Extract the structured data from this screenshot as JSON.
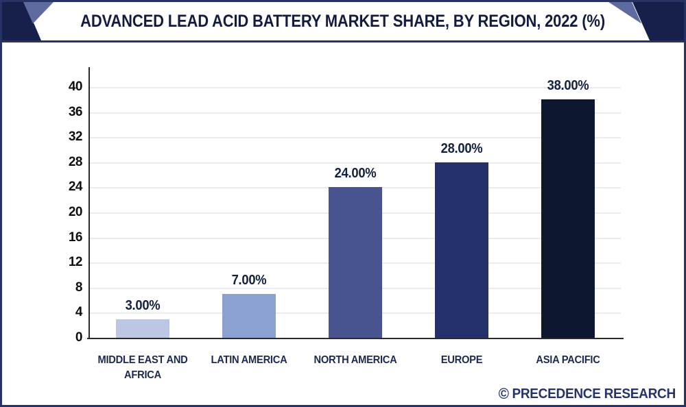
{
  "header": {
    "title": "ADVANCED LEAD ACID BATTERY MARKET SHARE, BY REGION, 2022 (%)"
  },
  "watermark": {
    "symbol": "©",
    "text": "PRECEDENCE RESEARCH"
  },
  "colors": {
    "border_navy": "#273364",
    "header_corner_dark": "#16204a",
    "header_corner_slate": "#5d6b9e",
    "axis": "#2a2a2a",
    "gridline": "#ebebeb",
    "tick_text": "#0e0e0e",
    "value_label_text": "#13203f",
    "category_text": "#1c2950",
    "watermark_text": "#24336b"
  },
  "chart_data": {
    "type": "bar",
    "title": "ADVANCED LEAD ACID BATTERY MARKET SHARE, BY REGION, 2022 (%)",
    "categories": [
      "MIDDLE EAST AND AFRICA",
      "LATIN AMERICA",
      "NORTH AMERICA",
      "EUROPE",
      "ASIA PACIFIC"
    ],
    "values": [
      3,
      7,
      24,
      28,
      38
    ],
    "value_labels": [
      "3.00%",
      "7.00%",
      "24.00%",
      "28.00%",
      "38.00%"
    ],
    "bar_colors": [
      "#bcc7e4",
      "#8ba1d1",
      "#48548f",
      "#25316a",
      "#0e1730"
    ],
    "xlabel": "",
    "ylabel": "",
    "ylim": [
      0,
      40
    ],
    "y_ticks": [
      0,
      4,
      8,
      12,
      16,
      20,
      24,
      28,
      32,
      36,
      40
    ],
    "grid": true,
    "legend": false
  }
}
